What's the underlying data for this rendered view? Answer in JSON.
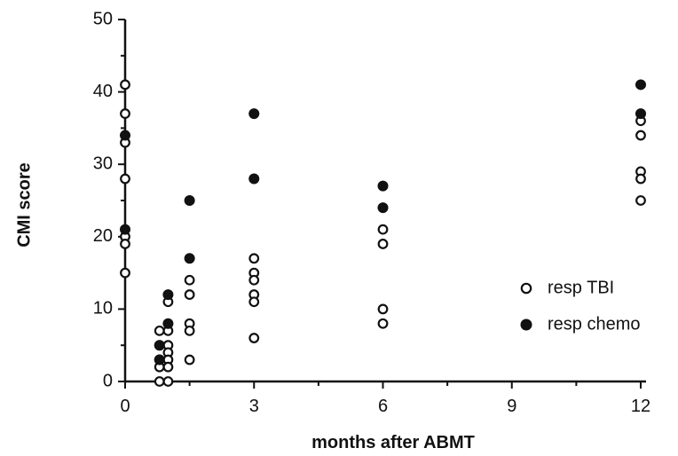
{
  "chart_data": {
    "type": "scatter",
    "xlabel": "months  after  ABMT",
    "ylabel": "CMI  score",
    "xlim": [
      0,
      12
    ],
    "ylim": [
      0,
      50
    ],
    "xticks": [
      0,
      3,
      6,
      9,
      12
    ],
    "yticks": [
      0,
      10,
      20,
      30,
      40,
      50
    ],
    "grid": false,
    "legend_position": "right",
    "series": [
      {
        "name": "resp TBI",
        "marker": "open-circle",
        "color": "#111111",
        "points": [
          {
            "x": 0,
            "y": 41
          },
          {
            "x": 0,
            "y": 37
          },
          {
            "x": 0,
            "y": 33
          },
          {
            "x": 0,
            "y": 28
          },
          {
            "x": 0,
            "y": 20
          },
          {
            "x": 0,
            "y": 19
          },
          {
            "x": 0,
            "y": 15
          },
          {
            "x": 0.8,
            "y": 7
          },
          {
            "x": 0.8,
            "y": 5
          },
          {
            "x": 0.8,
            "y": 3
          },
          {
            "x": 0.8,
            "y": 2
          },
          {
            "x": 0.8,
            "y": 0
          },
          {
            "x": 1,
            "y": 11
          },
          {
            "x": 1,
            "y": 7
          },
          {
            "x": 1,
            "y": 5
          },
          {
            "x": 1,
            "y": 4
          },
          {
            "x": 1,
            "y": 3
          },
          {
            "x": 1,
            "y": 2
          },
          {
            "x": 1,
            "y": 0
          },
          {
            "x": 1.5,
            "y": 14
          },
          {
            "x": 1.5,
            "y": 12
          },
          {
            "x": 1.5,
            "y": 8
          },
          {
            "x": 1.5,
            "y": 7
          },
          {
            "x": 1.5,
            "y": 3
          },
          {
            "x": 3,
            "y": 17
          },
          {
            "x": 3,
            "y": 15
          },
          {
            "x": 3,
            "y": 14
          },
          {
            "x": 3,
            "y": 12
          },
          {
            "x": 3,
            "y": 11
          },
          {
            "x": 3,
            "y": 6
          },
          {
            "x": 6,
            "y": 21
          },
          {
            "x": 6,
            "y": 19
          },
          {
            "x": 6,
            "y": 10
          },
          {
            "x": 6,
            "y": 8
          },
          {
            "x": 12,
            "y": 36
          },
          {
            "x": 12,
            "y": 34
          },
          {
            "x": 12,
            "y": 29
          },
          {
            "x": 12,
            "y": 28
          },
          {
            "x": 12,
            "y": 25
          }
        ]
      },
      {
        "name": "resp chemo",
        "marker": "filled-circle",
        "color": "#111111",
        "points": [
          {
            "x": 0,
            "y": 34
          },
          {
            "x": 0,
            "y": 21
          },
          {
            "x": 0.8,
            "y": 5
          },
          {
            "x": 0.8,
            "y": 3
          },
          {
            "x": 1,
            "y": 12
          },
          {
            "x": 1,
            "y": 8
          },
          {
            "x": 1.5,
            "y": 25
          },
          {
            "x": 1.5,
            "y": 17
          },
          {
            "x": 3,
            "y": 37
          },
          {
            "x": 3,
            "y": 28
          },
          {
            "x": 6,
            "y": 27
          },
          {
            "x": 6,
            "y": 24
          },
          {
            "x": 12,
            "y": 41
          },
          {
            "x": 12,
            "y": 37
          }
        ]
      }
    ]
  }
}
